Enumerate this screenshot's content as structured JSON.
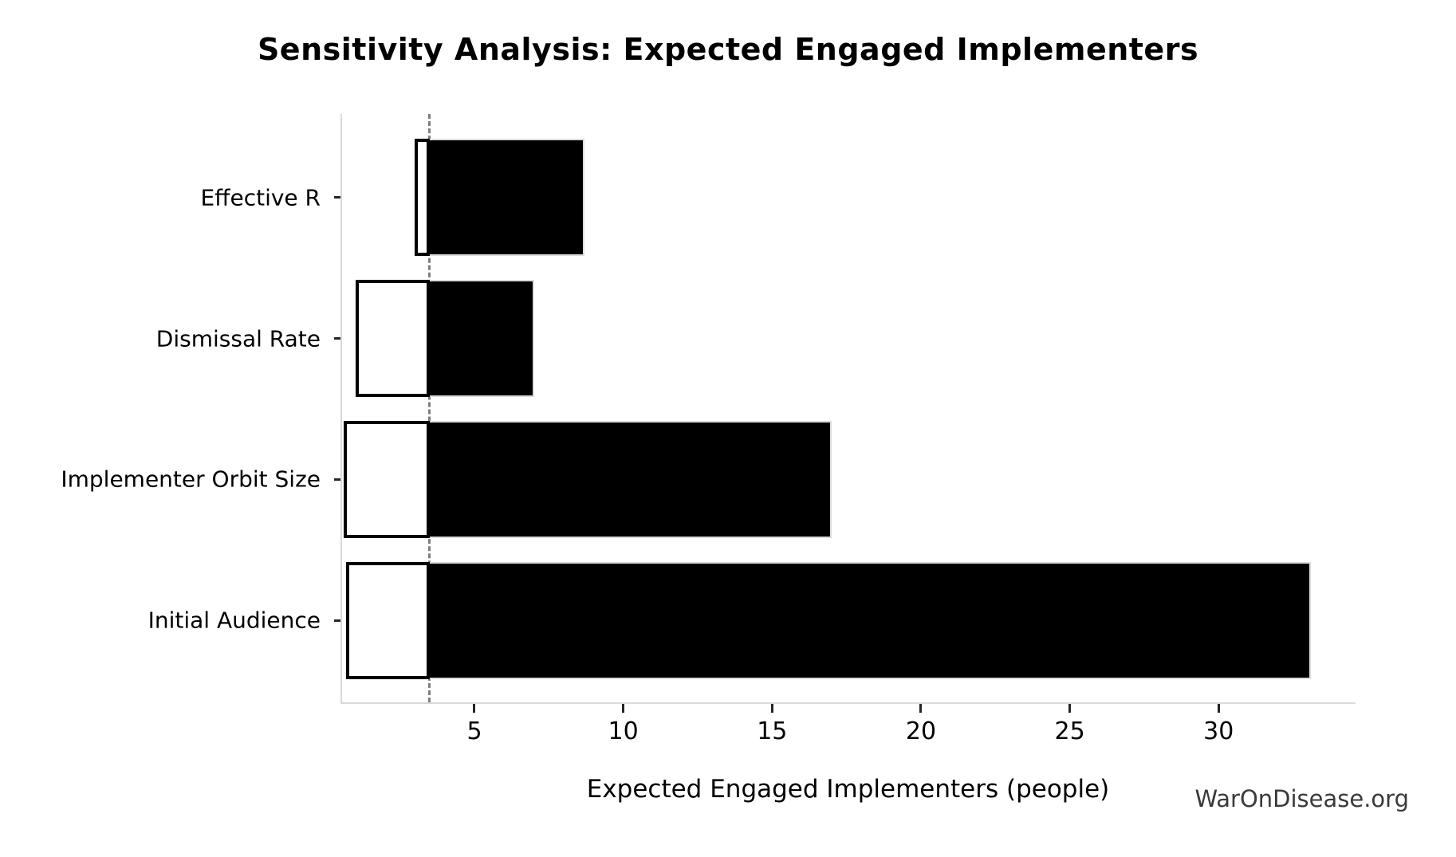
{
  "title": "Sensitivity Analysis: Expected Engaged Implementers",
  "watermark": "WarOnDisease.org",
  "chart_data": {
    "type": "bar",
    "subtype": "tornado-horizontal",
    "title": "Sensitivity Analysis: Expected Engaged Implementers",
    "xlabel": "Expected Engaged Implementers (people)",
    "ylabel": "",
    "categories": [
      "Effective R",
      "Dismissal Rate",
      "Implementer Orbit Size",
      "Initial Audience"
    ],
    "series": [
      {
        "name": "low",
        "values": [
          3.0,
          1.0,
          0.6,
          0.7
        ]
      },
      {
        "name": "high",
        "values": [
          8.7,
          7.0,
          17.0,
          33.1
        ]
      }
    ],
    "baseline": 3.5,
    "xticks": [
      5,
      10,
      15,
      20,
      25,
      30
    ],
    "xlim": [
      0.5,
      34.6
    ],
    "grid": false,
    "legend_position": "none",
    "colors": {
      "bar_fill_high": "#000000",
      "bar_fill_low": "#ffffff",
      "bar_edge": "#000000",
      "baseline_line": "#7f7f7f",
      "spine": "#d9d9d9",
      "tick_mark": "#262626",
      "text": "#000000",
      "watermark_text": "#3a3a3a",
      "background": "#ffffff"
    }
  }
}
